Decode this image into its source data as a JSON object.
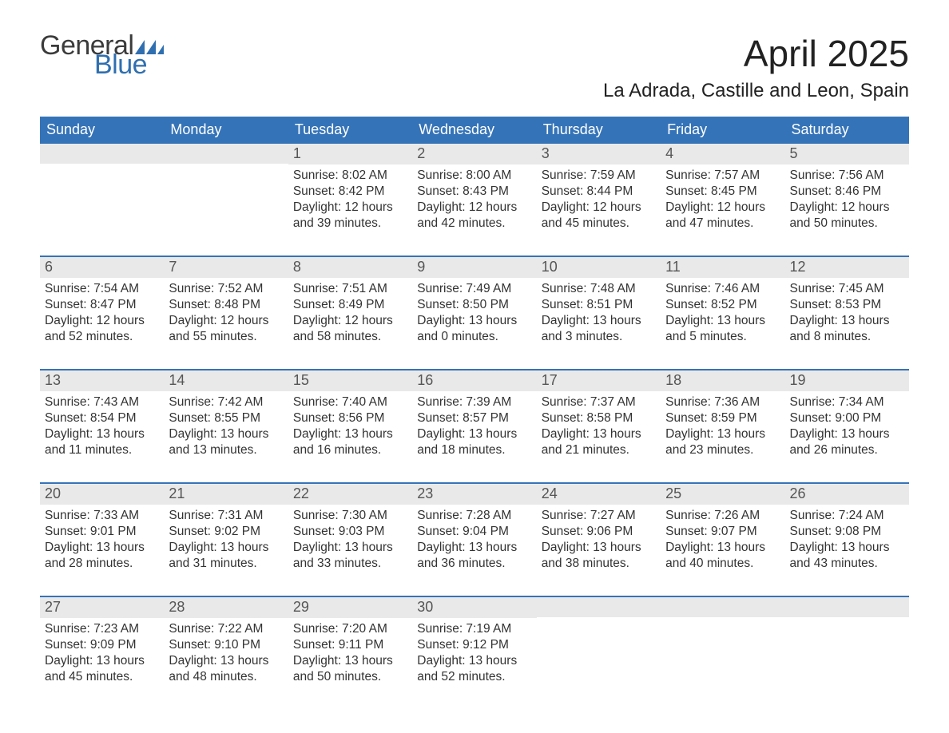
{
  "brand": {
    "word1": "General",
    "word2": "Blue"
  },
  "title": "April 2025",
  "location": "La Adrada, Castille and Leon, Spain",
  "colors": {
    "header_blue": "#3573b8",
    "logo_blue": "#2f6fb0",
    "daynum_bg": "#e9e9e9",
    "text": "#333333",
    "bg": "#ffffff"
  },
  "layout": {
    "columns": 7,
    "first_day_column_index": 2,
    "days_in_month": 30
  },
  "days_of_week": [
    "Sunday",
    "Monday",
    "Tuesday",
    "Wednesday",
    "Thursday",
    "Friday",
    "Saturday"
  ],
  "labels": {
    "sunrise": "Sunrise",
    "sunset": "Sunset",
    "daylight": "Daylight"
  },
  "days": [
    {
      "n": 1,
      "sunrise": "8:02 AM",
      "sunset": "8:42 PM",
      "daylight": "12 hours and 39 minutes."
    },
    {
      "n": 2,
      "sunrise": "8:00 AM",
      "sunset": "8:43 PM",
      "daylight": "12 hours and 42 minutes."
    },
    {
      "n": 3,
      "sunrise": "7:59 AM",
      "sunset": "8:44 PM",
      "daylight": "12 hours and 45 minutes."
    },
    {
      "n": 4,
      "sunrise": "7:57 AM",
      "sunset": "8:45 PM",
      "daylight": "12 hours and 47 minutes."
    },
    {
      "n": 5,
      "sunrise": "7:56 AM",
      "sunset": "8:46 PM",
      "daylight": "12 hours and 50 minutes."
    },
    {
      "n": 6,
      "sunrise": "7:54 AM",
      "sunset": "8:47 PM",
      "daylight": "12 hours and 52 minutes."
    },
    {
      "n": 7,
      "sunrise": "7:52 AM",
      "sunset": "8:48 PM",
      "daylight": "12 hours and 55 minutes."
    },
    {
      "n": 8,
      "sunrise": "7:51 AM",
      "sunset": "8:49 PM",
      "daylight": "12 hours and 58 minutes."
    },
    {
      "n": 9,
      "sunrise": "7:49 AM",
      "sunset": "8:50 PM",
      "daylight": "13 hours and 0 minutes."
    },
    {
      "n": 10,
      "sunrise": "7:48 AM",
      "sunset": "8:51 PM",
      "daylight": "13 hours and 3 minutes."
    },
    {
      "n": 11,
      "sunrise": "7:46 AM",
      "sunset": "8:52 PM",
      "daylight": "13 hours and 5 minutes."
    },
    {
      "n": 12,
      "sunrise": "7:45 AM",
      "sunset": "8:53 PM",
      "daylight": "13 hours and 8 minutes."
    },
    {
      "n": 13,
      "sunrise": "7:43 AM",
      "sunset": "8:54 PM",
      "daylight": "13 hours and 11 minutes."
    },
    {
      "n": 14,
      "sunrise": "7:42 AM",
      "sunset": "8:55 PM",
      "daylight": "13 hours and 13 minutes."
    },
    {
      "n": 15,
      "sunrise": "7:40 AM",
      "sunset": "8:56 PM",
      "daylight": "13 hours and 16 minutes."
    },
    {
      "n": 16,
      "sunrise": "7:39 AM",
      "sunset": "8:57 PM",
      "daylight": "13 hours and 18 minutes."
    },
    {
      "n": 17,
      "sunrise": "7:37 AM",
      "sunset": "8:58 PM",
      "daylight": "13 hours and 21 minutes."
    },
    {
      "n": 18,
      "sunrise": "7:36 AM",
      "sunset": "8:59 PM",
      "daylight": "13 hours and 23 minutes."
    },
    {
      "n": 19,
      "sunrise": "7:34 AM",
      "sunset": "9:00 PM",
      "daylight": "13 hours and 26 minutes."
    },
    {
      "n": 20,
      "sunrise": "7:33 AM",
      "sunset": "9:01 PM",
      "daylight": "13 hours and 28 minutes."
    },
    {
      "n": 21,
      "sunrise": "7:31 AM",
      "sunset": "9:02 PM",
      "daylight": "13 hours and 31 minutes."
    },
    {
      "n": 22,
      "sunrise": "7:30 AM",
      "sunset": "9:03 PM",
      "daylight": "13 hours and 33 minutes."
    },
    {
      "n": 23,
      "sunrise": "7:28 AM",
      "sunset": "9:04 PM",
      "daylight": "13 hours and 36 minutes."
    },
    {
      "n": 24,
      "sunrise": "7:27 AM",
      "sunset": "9:06 PM",
      "daylight": "13 hours and 38 minutes."
    },
    {
      "n": 25,
      "sunrise": "7:26 AM",
      "sunset": "9:07 PM",
      "daylight": "13 hours and 40 minutes."
    },
    {
      "n": 26,
      "sunrise": "7:24 AM",
      "sunset": "9:08 PM",
      "daylight": "13 hours and 43 minutes."
    },
    {
      "n": 27,
      "sunrise": "7:23 AM",
      "sunset": "9:09 PM",
      "daylight": "13 hours and 45 minutes."
    },
    {
      "n": 28,
      "sunrise": "7:22 AM",
      "sunset": "9:10 PM",
      "daylight": "13 hours and 48 minutes."
    },
    {
      "n": 29,
      "sunrise": "7:20 AM",
      "sunset": "9:11 PM",
      "daylight": "13 hours and 50 minutes."
    },
    {
      "n": 30,
      "sunrise": "7:19 AM",
      "sunset": "9:12 PM",
      "daylight": "13 hours and 52 minutes."
    }
  ]
}
